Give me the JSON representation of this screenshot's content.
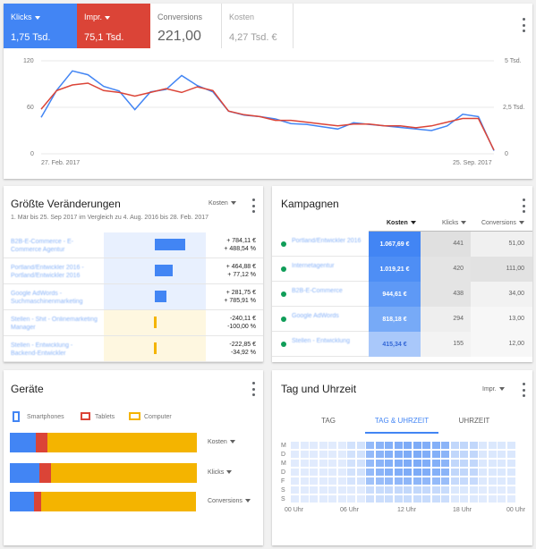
{
  "top": {
    "metrics": [
      {
        "label": "Klicks",
        "value": "1,75 Tsd."
      },
      {
        "label": "Impr.",
        "value": "75,1 Tsd."
      },
      {
        "label": "Conversions",
        "value": "221,00"
      },
      {
        "label": "Kosten",
        "value": "4,27 Tsd. €"
      }
    ],
    "y_left": [
      "120",
      "60",
      "0"
    ],
    "y_right": [
      "5 Tsd.",
      "2,5 Tsd.",
      "0"
    ],
    "x_start": "27. Feb. 2017",
    "x_end": "25. Sep. 2017",
    "colors": {
      "klicks": "#4285f4",
      "impr": "#db4437"
    }
  },
  "chart_data": {
    "type": "line",
    "series": [
      {
        "name": "Klicks",
        "values": [
          47,
          82,
          107,
          102,
          87,
          81,
          57,
          80,
          83,
          101,
          88,
          80,
          55,
          50,
          48,
          45,
          39,
          38,
          35,
          32,
          40,
          38,
          36,
          34,
          32,
          30,
          36,
          51,
          48,
          4
        ]
      },
      {
        "name": "Impr.",
        "values": [
          2.4,
          3.4,
          3.7,
          3.8,
          3.4,
          3.3,
          3.1,
          3.3,
          3.5,
          3.3,
          3.6,
          3.4,
          2.3,
          2.1,
          2.0,
          1.8,
          1.8,
          1.7,
          1.6,
          1.5,
          1.6,
          1.6,
          1.5,
          1.5,
          1.4,
          1.5,
          1.7,
          1.9,
          1.9,
          0.2
        ]
      }
    ],
    "ylim_left": [
      0,
      120
    ],
    "ylim_right": [
      0,
      5000
    ]
  },
  "changes": {
    "title": "Größte Veränderungen",
    "dropdown": "Kosten",
    "subtitle": "1. Mär bis 25. Sep 2017 im Vergleich zu 4. Aug. 2016 bis 28. Feb. 2017",
    "rows": [
      {
        "name": "B2B-E-Commerce - E-Commerce Agentur",
        "value": "+ 784,11 €",
        "pct": "+ 488,54 %",
        "fraction": 1.0
      },
      {
        "name": "Portland/Entwickler 2016 - Portland/Entwickler 2016",
        "value": "+ 464,88 €",
        "pct": "+ 77,12 %",
        "fraction": 0.6
      },
      {
        "name": "Google AdWords - Suchmaschinenmarketing",
        "value": "+ 281,75 €",
        "pct": "+ 785,91 %",
        "fraction": 0.37
      },
      {
        "name": "Stellen - Shit - Onlinemarketing Manager",
        "value": "-240,11 €",
        "pct": "-100,00 %",
        "fraction": 0.31
      },
      {
        "name": "Stellen - Entwicklung - Backend-Entwickler",
        "value": "-222,85 €",
        "pct": "-34,92 %",
        "fraction": 0.29
      }
    ]
  },
  "campaigns": {
    "title": "Kampagnen",
    "headers": [
      "Kosten",
      "Klicks",
      "Conversions"
    ],
    "rows": [
      {
        "name": "Portland/Entwickler 2016",
        "cost": "1.067,69 €",
        "clicks": "441",
        "conv": "51,00"
      },
      {
        "name": "Internetagentur",
        "cost": "1.019,21 €",
        "clicks": "420",
        "conv": "111,00"
      },
      {
        "name": "B2B-E-Commerce",
        "cost": "944,61 €",
        "clicks": "438",
        "conv": "34,00"
      },
      {
        "name": "Google AdWords",
        "cost": "818,18 €",
        "clicks": "294",
        "conv": "13,00"
      },
      {
        "name": "Stellen - Entwicklung",
        "cost": "415,34 €",
        "clicks": "155",
        "conv": "12,00"
      }
    ]
  },
  "devices": {
    "title": "Geräte",
    "legend": [
      "Smartphones",
      "Tablets",
      "Computer"
    ],
    "colors": [
      "#4285f4",
      "#db4437",
      "#f4b400"
    ],
    "bars": [
      {
        "label": "Kosten",
        "shares": [
          0.14,
          0.06,
          0.8
        ]
      },
      {
        "label": "Klicks",
        "shares": [
          0.16,
          0.06,
          0.78
        ]
      },
      {
        "label": "Conversions",
        "shares": [
          0.13,
          0.04,
          0.83
        ]
      }
    ]
  },
  "time": {
    "title": "Tag und Uhrzeit",
    "dropdown": "Impr.",
    "tabs": [
      "TAG",
      "TAG & UHRZEIT",
      "UHRZEIT"
    ],
    "days": [
      "M",
      "D",
      "M",
      "D",
      "F",
      "S",
      "S"
    ],
    "hours": [
      "00 Uhr",
      "06 Uhr",
      "12 Uhr",
      "18 Uhr",
      "00 Uhr"
    ]
  }
}
